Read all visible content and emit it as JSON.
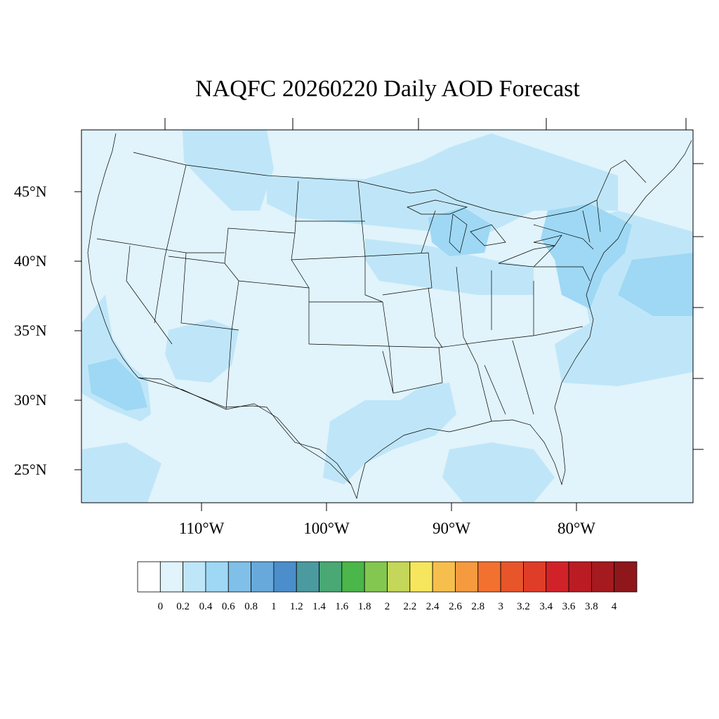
{
  "title": "NAQFC 20260220 Daily AOD Forecast",
  "map": {
    "projection": "Lambert conformal",
    "region": "Contiguous United States",
    "variable": "Aerosol Optical Depth",
    "lat_labels": [
      "45°N",
      "40°N",
      "35°N",
      "30°N",
      "25°N"
    ],
    "lon_labels": [
      "110°W",
      "100°W",
      "90°W",
      "80°W"
    ],
    "field_colors": {
      "level_0_2": "#e1f3fb",
      "level_0_4": "#bfe6f8",
      "level_0_6": "#9ed8f4"
    }
  },
  "colorbar": {
    "labels": [
      "0",
      "0.2",
      "0.4",
      "0.6",
      "0.8",
      "1",
      "1.2",
      "1.4",
      "1.6",
      "1.8",
      "2",
      "2.2",
      "2.4",
      "2.6",
      "2.8",
      "3",
      "3.2",
      "3.4",
      "3.6",
      "3.8",
      "4"
    ],
    "colors": [
      "#ffffff",
      "#e1f3fb",
      "#bfe6f8",
      "#9ed8f4",
      "#80c0e8",
      "#68a9dc",
      "#4b8ecb",
      "#4a9a9f",
      "#49a874",
      "#4bb64a",
      "#84c750",
      "#c4d75a",
      "#f6e65d",
      "#f6bf4d",
      "#f59a3f",
      "#f2712f",
      "#e9552b",
      "#e03d28",
      "#d22229",
      "#bb1c24",
      "#a51a1f",
      "#8f171b"
    ]
  }
}
